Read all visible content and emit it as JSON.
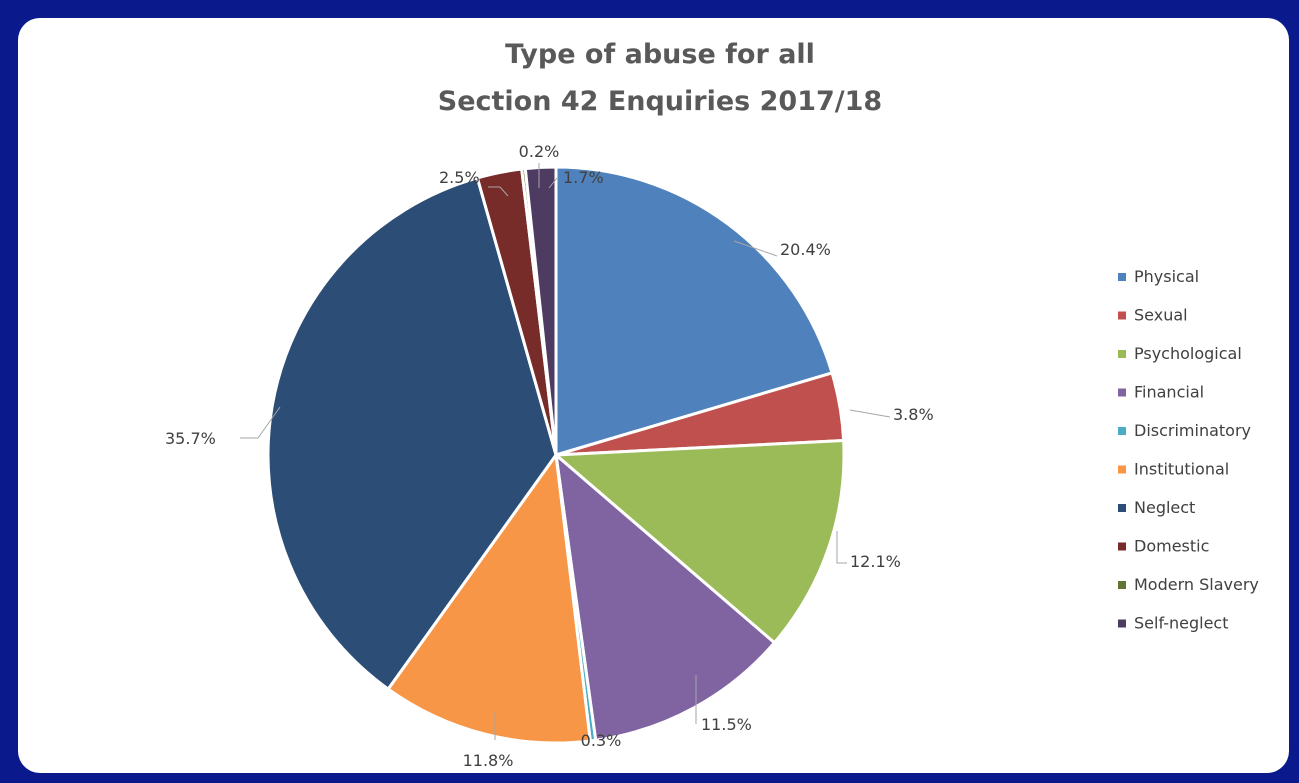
{
  "chart_data": {
    "type": "pie",
    "title": [
      "Type of abuse for all",
      "Section 42 Enquiries 2017/18"
    ],
    "legend_position": "right",
    "slices": [
      {
        "name": "Physical",
        "value": 20.4,
        "label": "20.4%",
        "color": "#4f81bd"
      },
      {
        "name": "Sexual",
        "value": 3.8,
        "label": "3.8%",
        "color": "#c0504d"
      },
      {
        "name": "Psychological",
        "value": 12.1,
        "label": "12.1%",
        "color": "#9bbb59"
      },
      {
        "name": "Financial",
        "value": 11.5,
        "label": "11.5%",
        "color": "#8064a2"
      },
      {
        "name": "Discriminatory",
        "value": 0.3,
        "label": "0.3%",
        "color": "#4bacc6"
      },
      {
        "name": "Institutional",
        "value": 11.8,
        "label": "11.8%",
        "color": "#f79646"
      },
      {
        "name": "Neglect",
        "value": 35.7,
        "label": "35.7%",
        "color": "#2c4d75"
      },
      {
        "name": "Domestic",
        "value": 2.5,
        "label": "2.5%",
        "color": "#772c2a"
      },
      {
        "name": "Modern Slavery",
        "value": 0.2,
        "label": "0.2%",
        "color": "#5f7530"
      },
      {
        "name": "Self-neglect",
        "value": 1.7,
        "label": "1.7%",
        "color": "#4d3b62"
      }
    ]
  }
}
